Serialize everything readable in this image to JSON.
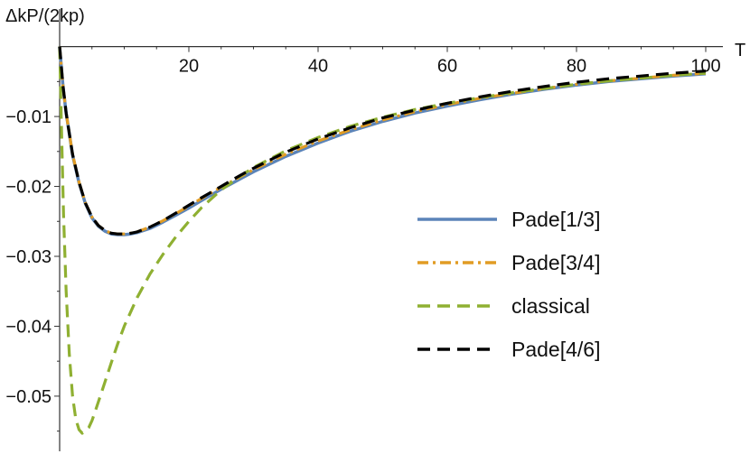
{
  "chart_data": {
    "type": "line",
    "title": "",
    "xlabel": "T",
    "ylabel": "ΔkP/(2kp)",
    "xlim": [
      0,
      100
    ],
    "ylim": [
      -0.0575,
      0.0015
    ],
    "x_ticks": [
      20,
      40,
      60,
      80,
      100
    ],
    "y_ticks": [
      -0.05,
      -0.04,
      -0.03,
      -0.02,
      -0.01
    ],
    "x_tick_labels": [
      "20",
      "40",
      "60",
      "80",
      "100"
    ],
    "y_tick_labels": [
      "−0.05",
      "−0.04",
      "−0.03",
      "−0.02",
      "−0.01"
    ],
    "grid": false,
    "legend_position": "right",
    "series": [
      {
        "name": "Pade[1/3]",
        "color": "#5b84b9",
        "style": "solid",
        "x": [
          0,
          0.5,
          1,
          2,
          3,
          4,
          5,
          6,
          7,
          8,
          9,
          10,
          11,
          12,
          14,
          16,
          18,
          20,
          22,
          25,
          28,
          30,
          35,
          40,
          45,
          50,
          55,
          60,
          65,
          70,
          75,
          80,
          85,
          90,
          95,
          100
        ],
        "y": [
          0,
          -0.0055,
          -0.0095,
          -0.0155,
          -0.0195,
          -0.0225,
          -0.0245,
          -0.0257,
          -0.0264,
          -0.0268,
          -0.0269,
          -0.0269,
          -0.0268,
          -0.0266,
          -0.026,
          -0.0251,
          -0.0241,
          -0.0231,
          -0.022,
          -0.0204,
          -0.0189,
          -0.0179,
          -0.0157,
          -0.0138,
          -0.0121,
          -0.0107,
          -0.0095,
          -0.0085,
          -0.0076,
          -0.0068,
          -0.0061,
          -0.0055,
          -0.005,
          -0.0046,
          -0.0042,
          -0.0039
        ]
      },
      {
        "name": "Pade[3/4]",
        "color": "#e19c24",
        "style": "dash-dot",
        "x": [
          0,
          0.5,
          1,
          2,
          3,
          4,
          5,
          6,
          7,
          8,
          9,
          10,
          11,
          12,
          14,
          16,
          18,
          20,
          22,
          25,
          28,
          30,
          35,
          40,
          45,
          50,
          55,
          60,
          65,
          70,
          75,
          80,
          85,
          90,
          95,
          100
        ],
        "y": [
          0,
          -0.0055,
          -0.0095,
          -0.0154,
          -0.0194,
          -0.0224,
          -0.0244,
          -0.0256,
          -0.0263,
          -0.0267,
          -0.0268,
          -0.0268,
          -0.0267,
          -0.0265,
          -0.0258,
          -0.0249,
          -0.0239,
          -0.0228,
          -0.0217,
          -0.0201,
          -0.0186,
          -0.0176,
          -0.0154,
          -0.0135,
          -0.0119,
          -0.0105,
          -0.0093,
          -0.0083,
          -0.0074,
          -0.0067,
          -0.006,
          -0.0054,
          -0.0049,
          -0.0045,
          -0.0041,
          -0.0038
        ]
      },
      {
        "name": "classical",
        "color": "#8fb032",
        "style": "dashed",
        "x": [
          0,
          0.3,
          0.6,
          1,
          1.5,
          2,
          2.5,
          3,
          3.5,
          4,
          4.5,
          5,
          5.5,
          6,
          7,
          8,
          9,
          10,
          12,
          14,
          16,
          18,
          20,
          22,
          25,
          28,
          30,
          35,
          40,
          45,
          50,
          55,
          60,
          65,
          70,
          75,
          80,
          85,
          90,
          95,
          100
        ],
        "y": [
          0,
          -0.012,
          -0.024,
          -0.035,
          -0.044,
          -0.05,
          -0.0533,
          -0.0548,
          -0.0553,
          -0.055,
          -0.0545,
          -0.0535,
          -0.0522,
          -0.0508,
          -0.048,
          -0.0452,
          -0.0425,
          -0.04,
          -0.0359,
          -0.0325,
          -0.0297,
          -0.0272,
          -0.025,
          -0.023,
          -0.0205,
          -0.0185,
          -0.0173,
          -0.0149,
          -0.013,
          -0.0114,
          -0.0101,
          -0.009,
          -0.0081,
          -0.0073,
          -0.0066,
          -0.006,
          -0.0054,
          -0.0049,
          -0.0045,
          -0.0041,
          -0.0038
        ]
      },
      {
        "name": "Pade[4/6]",
        "color": "#000000",
        "style": "dashed",
        "x": [
          0,
          0.5,
          1,
          2,
          3,
          4,
          5,
          6,
          7,
          8,
          9,
          10,
          11,
          12,
          14,
          16,
          18,
          20,
          22,
          25,
          28,
          30,
          35,
          40,
          45,
          50,
          55,
          60,
          65,
          70,
          75,
          80,
          85,
          90,
          95,
          100
        ],
        "y": [
          0,
          -0.0055,
          -0.0095,
          -0.0154,
          -0.0194,
          -0.0224,
          -0.0244,
          -0.0256,
          -0.0263,
          -0.0267,
          -0.0268,
          -0.0268,
          -0.0267,
          -0.0265,
          -0.0258,
          -0.0249,
          -0.0238,
          -0.0227,
          -0.0216,
          -0.02,
          -0.0184,
          -0.0174,
          -0.0151,
          -0.0132,
          -0.0116,
          -0.0102,
          -0.0091,
          -0.0081,
          -0.0072,
          -0.0064,
          -0.0057,
          -0.0051,
          -0.0046,
          -0.0042,
          -0.0038,
          -0.0035
        ]
      }
    ]
  }
}
